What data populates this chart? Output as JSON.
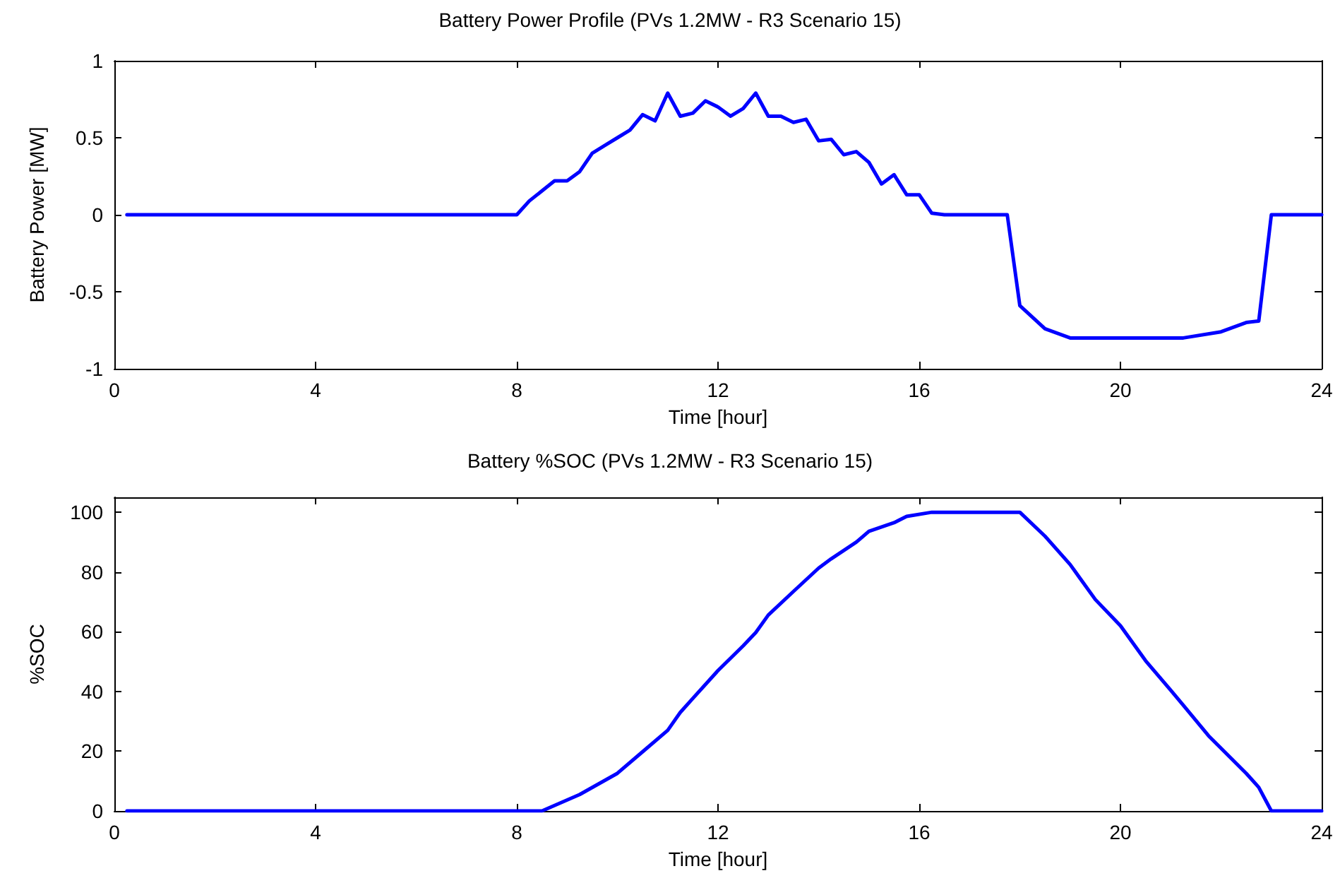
{
  "chart_data": [
    {
      "type": "line",
      "title": "Battery Power Profile (PVs 1.2MW - R3 Scenario 15)",
      "xlabel": "Time [hour]",
      "ylabel": "Battery Power [MW]",
      "xlim": [
        0,
        24
      ],
      "xticks": [
        0,
        4,
        8,
        12,
        16,
        20,
        24
      ],
      "ylim": [
        -1,
        1
      ],
      "yticks": [
        -1,
        -0.5,
        0,
        0.5,
        1
      ],
      "grid": false,
      "marker": "none",
      "line_style": "solid",
      "series": [
        {
          "color": "#0000ff",
          "x": [
            0.25,
            8,
            8.25,
            8.75,
            9,
            9.25,
            9.5,
            9.75,
            10,
            10.25,
            10.5,
            10.75,
            11,
            11.25,
            11.5,
            11.75,
            12,
            12.25,
            12.5,
            12.75,
            13,
            13.25,
            13.5,
            13.75,
            14,
            14.25,
            14.5,
            14.75,
            15,
            15.25,
            15.5,
            15.75,
            16,
            16.25,
            16.5,
            17.75,
            18,
            18.5,
            19,
            21.25,
            22,
            22.5,
            22.75,
            23,
            24
          ],
          "values": [
            0,
            0,
            0.09,
            0.22,
            0.22,
            0.28,
            0.4,
            0.45,
            0.5,
            0.55,
            0.65,
            0.61,
            0.79,
            0.64,
            0.66,
            0.74,
            0.7,
            0.64,
            0.69,
            0.79,
            0.64,
            0.64,
            0.6,
            0.62,
            0.48,
            0.49,
            0.39,
            0.41,
            0.34,
            0.2,
            0.26,
            0.13,
            0.13,
            0.01,
            0,
            0,
            -0.59,
            -0.74,
            -0.8,
            -0.8,
            -0.76,
            -0.7,
            -0.69,
            0,
            0
          ]
        }
      ]
    },
    {
      "type": "line",
      "title": "Battery %SOC (PVs 1.2MW - R3 Scenario 15)",
      "xlabel": "Time [hour]",
      "ylabel": "%SOC",
      "xlim": [
        0,
        24
      ],
      "xticks": [
        0,
        4,
        8,
        12,
        16,
        20,
        24
      ],
      "ylim": [
        0,
        105
      ],
      "yticks": [
        0,
        20,
        40,
        60,
        80,
        100
      ],
      "grid": false,
      "marker": "none",
      "line_style": "solid",
      "series": [
        {
          "color": "#0000ff",
          "x": [
            0.25,
            8.5,
            9.25,
            10,
            10.5,
            11,
            11.25,
            11.5,
            12,
            12.5,
            12.75,
            13,
            13.5,
            14,
            14.25,
            14.75,
            15,
            15.5,
            15.75,
            16.25,
            18,
            18.5,
            19,
            19.5,
            20,
            20.5,
            21,
            21.25,
            21.75,
            22,
            22.5,
            22.75,
            23,
            24
          ],
          "values": [
            0,
            0,
            5.5,
            12.6,
            19.8,
            27,
            33,
            37.7,
            47,
            55.3,
            59.7,
            65.6,
            73.5,
            81.3,
            84.4,
            90,
            93.6,
            96.5,
            98.6,
            100,
            100,
            92,
            82.5,
            70.8,
            62,
            50.3,
            40.4,
            35.4,
            25.2,
            21,
            12.6,
            7.9,
            0,
            0
          ]
        }
      ]
    }
  ]
}
